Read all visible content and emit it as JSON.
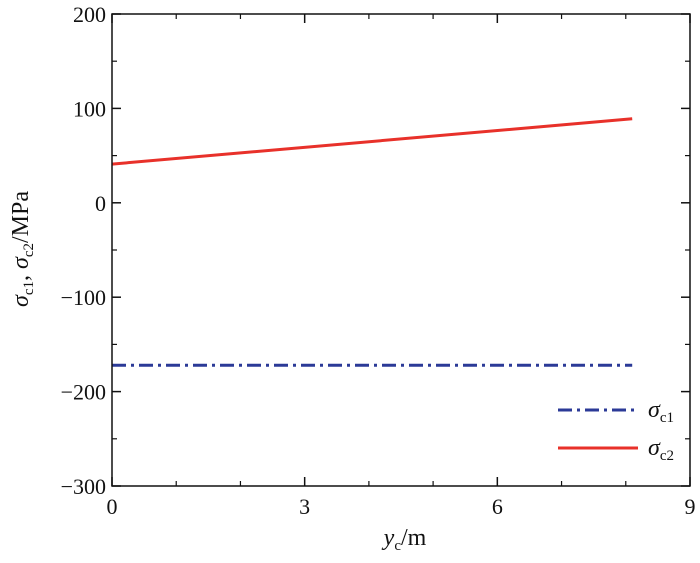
{
  "chart_data": {
    "type": "line",
    "xlabel": {
      "symbol": "y",
      "subscript": "c",
      "unit": "/m"
    },
    "ylabel": {
      "symbol1": "σ",
      "sub1": "c1",
      "sep": ", ",
      "symbol2": "σ",
      "sub2": "c2",
      "unit": "/MPa"
    },
    "xlim": [
      0,
      9
    ],
    "ylim": [
      -300,
      200
    ],
    "x_major_ticks": [
      0,
      3,
      6,
      9
    ],
    "x_tick_labels": [
      "0",
      "3",
      "6",
      "9"
    ],
    "x_minor_ticks": [
      1,
      2,
      4,
      5,
      7,
      8
    ],
    "y_major_ticks": [
      -300,
      -200,
      -100,
      0,
      100,
      200
    ],
    "y_tick_labels": [
      "−300",
      "−200",
      "−100",
      "0",
      "100",
      "200"
    ],
    "y_minor_ticks": [
      -250,
      -150,
      -50,
      50,
      150
    ],
    "grid": false,
    "legend_position": "bottom-right",
    "series": [
      {
        "symbol": "σ",
        "subscript": "c1",
        "color": "#2b3a97",
        "line_style": "dash-dot",
        "x": [
          0,
          8.1
        ],
        "y": [
          -172,
          -172
        ]
      },
      {
        "symbol": "σ",
        "subscript": "c2",
        "color": "#e8312a",
        "line_style": "solid",
        "x": [
          0,
          8.1
        ],
        "y": [
          41,
          89
        ]
      }
    ]
  }
}
